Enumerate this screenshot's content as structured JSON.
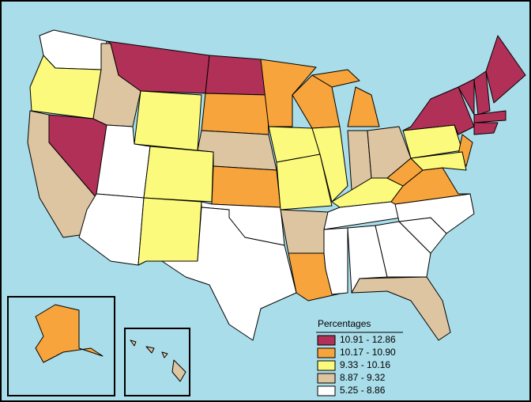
{
  "legend": {
    "title": "Percentages",
    "items": [
      {
        "label": "10.91 - 12.86",
        "color": "#b03058"
      },
      {
        "label": "10.17 - 10.90",
        "color": "#f7a43c"
      },
      {
        "label": "9.33 - 10.16",
        "color": "#fbfa7c"
      },
      {
        "label": "8.87 - 9.32",
        "color": "#ddc5a2"
      },
      {
        "label": "5.25 - 8.86",
        "color": "#ffffff"
      }
    ]
  }
}
